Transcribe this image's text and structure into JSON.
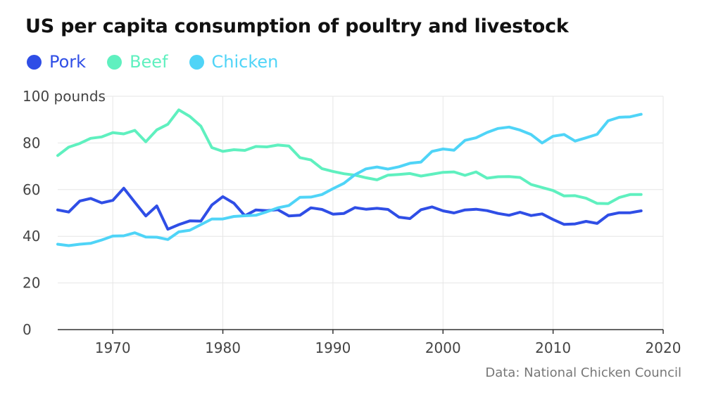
{
  "colors": {
    "pork": "#2f4ee6",
    "beef": "#5ff0bf",
    "chicken": "#4fd4f7",
    "grid": "#e6e6e6",
    "axis": "#333333",
    "tick_text": "#444444"
  },
  "chart_data": {
    "type": "line",
    "title": "US per capita consumption of poultry and livestock",
    "subtitle": "",
    "xlabel": "",
    "ylabel": "",
    "y_unit_label": "100 pounds",
    "source": "Data: National Chicken Council",
    "xlim": [
      1965,
      2020
    ],
    "ylim": [
      0,
      100
    ],
    "x_ticks": [
      1970,
      1980,
      1990,
      2000,
      2010,
      2020
    ],
    "y_ticks": [
      0,
      20,
      40,
      60,
      80,
      100
    ],
    "grid": "vertical and horizontal",
    "legend_position": "top-left",
    "x": [
      1965,
      1966,
      1967,
      1968,
      1969,
      1970,
      1971,
      1972,
      1973,
      1974,
      1975,
      1976,
      1977,
      1978,
      1979,
      1980,
      1981,
      1982,
      1983,
      1984,
      1985,
      1986,
      1987,
      1988,
      1989,
      1990,
      1991,
      1992,
      1993,
      1994,
      1995,
      1996,
      1997,
      1998,
      1999,
      2000,
      2001,
      2002,
      2003,
      2004,
      2005,
      2006,
      2007,
      2008,
      2009,
      2010,
      2011,
      2012,
      2013,
      2014,
      2015,
      2016,
      2017,
      2018
    ],
    "series": [
      {
        "name": "Pork",
        "color": "#2f4ee6",
        "values": [
          51.3,
          50.4,
          55.1,
          56.2,
          54.3,
          55.4,
          60.6,
          54.6,
          48.7,
          53.0,
          43.0,
          45.0,
          46.6,
          46.5,
          53.4,
          57.0,
          54.2,
          48.8,
          51.3,
          51.0,
          51.4,
          48.7,
          49.0,
          52.2,
          51.5,
          49.5,
          49.8,
          52.3,
          51.6,
          52.0,
          51.5,
          48.2,
          47.6,
          51.4,
          52.6,
          50.9,
          50.0,
          51.3,
          51.6,
          51.0,
          49.8,
          49.0,
          50.3,
          48.9,
          49.6,
          47.2,
          45.1,
          45.3,
          46.4,
          45.5,
          49.1,
          50.1,
          50.1,
          50.9
        ]
      },
      {
        "name": "Beef",
        "color": "#5ff0bf",
        "values": [
          74.6,
          78.2,
          79.8,
          82.0,
          82.6,
          84.4,
          83.9,
          85.4,
          80.5,
          85.6,
          88.0,
          94.2,
          91.4,
          87.2,
          78.0,
          76.4,
          77.1,
          76.8,
          78.5,
          78.3,
          79.1,
          78.7,
          73.7,
          72.7,
          69.0,
          67.8,
          66.8,
          66.2,
          65.1,
          64.2,
          66.2,
          66.5,
          66.9,
          65.8,
          66.6,
          67.4,
          67.6,
          66.1,
          67.6,
          64.9,
          65.5,
          65.6,
          65.2,
          62.2,
          60.9,
          59.6,
          57.3,
          57.4,
          56.3,
          54.1,
          54.0,
          56.6,
          57.9,
          57.9
        ]
      },
      {
        "name": "Chicken",
        "color": "#4fd4f7",
        "values": [
          36.6,
          36.0,
          36.6,
          37.0,
          38.4,
          40.1,
          40.2,
          41.5,
          39.7,
          39.6,
          38.6,
          41.9,
          42.6,
          45.0,
          47.4,
          47.4,
          48.5,
          48.8,
          49.0,
          50.5,
          52.2,
          53.2,
          56.7,
          56.8,
          57.9,
          60.4,
          62.7,
          66.4,
          68.9,
          69.7,
          68.8,
          69.8,
          71.3,
          71.8,
          76.4,
          77.4,
          76.9,
          81.1,
          82.2,
          84.5,
          86.2,
          86.8,
          85.5,
          83.6,
          80.0,
          82.9,
          83.6,
          80.8,
          82.2,
          83.7,
          89.5,
          91.0,
          91.2,
          92.3
        ]
      }
    ]
  }
}
